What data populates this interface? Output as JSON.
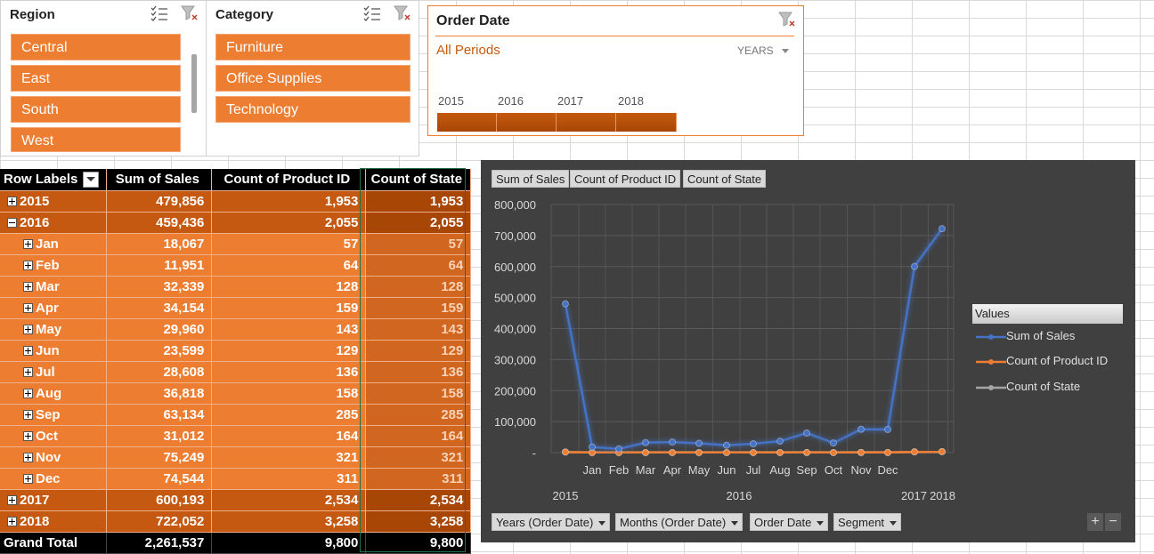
{
  "region_slicer": {
    "title": "Region",
    "items": [
      "Central",
      "East",
      "South",
      "West"
    ]
  },
  "category_slicer": {
    "title": "Category",
    "items": [
      "Furniture",
      "Office Supplies",
      "Technology"
    ]
  },
  "timeline": {
    "title": "Order Date",
    "period": "All Periods",
    "level": "YEARS",
    "years": [
      "2015",
      "2016",
      "2017",
      "2018"
    ]
  },
  "pivot": {
    "headers": [
      "Row Labels",
      "Sum of Sales",
      "Count of Product ID",
      "Count of State"
    ],
    "rows": [
      {
        "label": "2015",
        "level": "year",
        "expanded": false,
        "sales": "479,856",
        "product": "1,953",
        "state": "1,953"
      },
      {
        "label": "2016",
        "level": "year",
        "expanded": true,
        "sales": "459,436",
        "product": "2,055",
        "state": "2,055"
      },
      {
        "label": "Jan",
        "level": "month",
        "sales": "18,067",
        "product": "57",
        "state": "57"
      },
      {
        "label": "Feb",
        "level": "month",
        "sales": "11,951",
        "product": "64",
        "state": "64"
      },
      {
        "label": "Mar",
        "level": "month",
        "sales": "32,339",
        "product": "128",
        "state": "128"
      },
      {
        "label": "Apr",
        "level": "month",
        "sales": "34,154",
        "product": "159",
        "state": "159"
      },
      {
        "label": "May",
        "level": "month",
        "sales": "29,960",
        "product": "143",
        "state": "143"
      },
      {
        "label": "Jun",
        "level": "month",
        "sales": "23,599",
        "product": "129",
        "state": "129"
      },
      {
        "label": "Jul",
        "level": "month",
        "sales": "28,608",
        "product": "136",
        "state": "136"
      },
      {
        "label": "Aug",
        "level": "month",
        "sales": "36,818",
        "product": "158",
        "state": "158"
      },
      {
        "label": "Sep",
        "level": "month",
        "sales": "63,134",
        "product": "285",
        "state": "285"
      },
      {
        "label": "Oct",
        "level": "month",
        "sales": "31,012",
        "product": "164",
        "state": "164"
      },
      {
        "label": "Nov",
        "level": "month",
        "sales": "75,249",
        "product": "321",
        "state": "321"
      },
      {
        "label": "Dec",
        "level": "month",
        "sales": "74,544",
        "product": "311",
        "state": "311"
      },
      {
        "label": "2017",
        "level": "year",
        "expanded": false,
        "sales": "600,193",
        "product": "2,534",
        "state": "2,534"
      },
      {
        "label": "2018",
        "level": "year",
        "expanded": false,
        "sales": "722,052",
        "product": "3,258",
        "state": "3,258"
      }
    ],
    "grand_total": {
      "label": "Grand Total",
      "sales": "2,261,537",
      "product": "9,800",
      "state": "9,800"
    }
  },
  "chart_buttons": {
    "values": [
      "Sum of Sales",
      "Count of Product ID",
      "Count of State"
    ],
    "axis": [
      "Years (Order Date)",
      "Months (Order Date)",
      "Order Date",
      "Segment"
    ],
    "zoom_in": "+",
    "zoom_out": "−"
  },
  "chart_data": {
    "type": "line",
    "categories": [
      "",
      "Jan",
      "Feb",
      "Mar",
      "Apr",
      "May",
      "Jun",
      "Jul",
      "Aug",
      "Sep",
      "Oct",
      "Nov",
      "Dec",
      "",
      ""
    ],
    "group_labels": [
      {
        "label": "2015"
      },
      {
        "label": "2016"
      },
      {
        "label": "2017"
      },
      {
        "label": "2018"
      }
    ],
    "series": [
      {
        "name": "Sum of Sales",
        "color": "#4472c4",
        "values": [
          479856,
          18067,
          11951,
          32339,
          34154,
          29960,
          23599,
          28608,
          36818,
          63134,
          31012,
          75249,
          74544,
          600193,
          722052
        ]
      },
      {
        "name": "Count of Product ID",
        "color": "#ed7d31",
        "values": [
          1953,
          57,
          64,
          128,
          159,
          143,
          129,
          136,
          158,
          285,
          164,
          321,
          311,
          2534,
          3258
        ]
      },
      {
        "name": "Count of State",
        "color": "#a5a5a5",
        "values": [
          1953,
          57,
          64,
          128,
          159,
          143,
          129,
          136,
          158,
          285,
          164,
          321,
          311,
          2534,
          3258
        ]
      }
    ],
    "y_ticks": [
      "-",
      "100,000",
      "200,000",
      "300,000",
      "400,000",
      "500,000",
      "600,000",
      "700,000",
      "800,000"
    ],
    "ylim": [
      0,
      800000
    ],
    "legend_title": "Values",
    "legend_position": "right"
  },
  "colors": {
    "accent": "#ed7d31",
    "dark_accent": "#c65911",
    "chart_bg": "#404040"
  }
}
